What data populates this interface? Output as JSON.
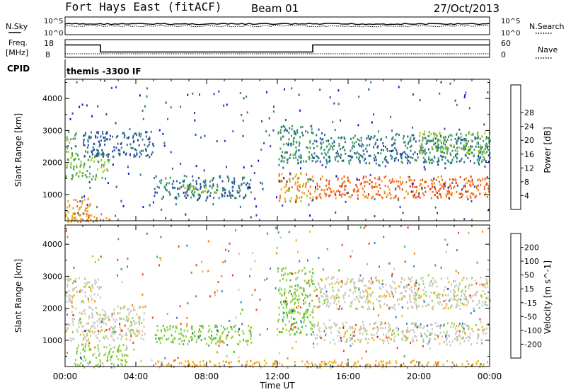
{
  "header": {
    "station": "Fort Hays East (fitACF)",
    "beam": "Beam 01",
    "date": "27/Oct/2013"
  },
  "panels": {
    "nsky": {
      "left_label": "N.Sky",
      "right_label": "N.Search",
      "left_ticks": [
        "10^5",
        "10^0"
      ],
      "right_ticks": [
        "10^5",
        "10^0"
      ]
    },
    "freq": {
      "left_label_1": "Freq.",
      "left_label_2": "[MHz]",
      "right_label": "Nave",
      "left_ticks": [
        "18",
        "8"
      ],
      "right_ticks": [
        "60",
        "0"
      ],
      "steps": [
        {
          "from": 0.0,
          "to": 2.0,
          "mhz": 15.0
        },
        {
          "from": 2.0,
          "to": 14.0,
          "mhz": 11.0
        },
        {
          "from": 14.0,
          "to": 24.0,
          "mhz": 15.0
        }
      ]
    },
    "cpid": {
      "label": "CPID",
      "program": "themis -3300 IF"
    }
  },
  "chart_data": [
    {
      "type": "heatmap",
      "name": "power",
      "ylabel": "Slant Range [km]",
      "xlabel": "Time UT",
      "x_ticks": [
        "00:00",
        "04:00",
        "08:00",
        "12:00",
        "16:00",
        "20:00",
        "00:00"
      ],
      "xlim_hours": [
        0,
        24
      ],
      "ylim_km": [
        180,
        4600
      ],
      "y_ticks": [
        "1000",
        "2000",
        "3000",
        "4000"
      ],
      "y_tick_values": [
        1000,
        2000,
        3000,
        4000
      ],
      "colorbar": {
        "label": "Power [dB]",
        "tick_labels": [
          "4",
          "8",
          "12",
          "16",
          "20",
          "24",
          "28"
        ],
        "colors": [
          "#0a14dc",
          "#2846a8",
          "#2d7a7a",
          "#3fa05a",
          "#a0c81e",
          "#f0a014",
          "#f06a1e",
          "#e63214",
          "#dc0a0a"
        ]
      },
      "regions": [
        {
          "t0": 0.0,
          "t1": 1.5,
          "r0": 180,
          "r1": 900,
          "value": 22
        },
        {
          "t0": 0.3,
          "t1": 2.6,
          "r0": 180,
          "r1": 450,
          "value": 24
        },
        {
          "t0": 0.0,
          "t1": 2.5,
          "r0": 1500,
          "r1": 2300,
          "value": 16
        },
        {
          "t0": 0.0,
          "t1": 0.6,
          "r0": 2300,
          "r1": 3000,
          "value": 14
        },
        {
          "t0": 1.0,
          "t1": 5.0,
          "r0": 2200,
          "r1": 3000,
          "value": 8
        },
        {
          "t0": 5.0,
          "t1": 10.5,
          "r0": 900,
          "r1": 1600,
          "value": 10
        },
        {
          "t0": 6.5,
          "t1": 8.5,
          "r0": 1050,
          "r1": 1300,
          "value": 18
        },
        {
          "t0": 12.0,
          "t1": 14.0,
          "r0": 800,
          "r1": 1700,
          "value": 22
        },
        {
          "t0": 12.0,
          "t1": 14.0,
          "r0": 2000,
          "r1": 3200,
          "value": 12
        },
        {
          "t0": 14.0,
          "t1": 24.0,
          "r0": 900,
          "r1": 1600,
          "value": 26
        },
        {
          "t0": 14.0,
          "t1": 24.0,
          "r0": 2000,
          "r1": 2900,
          "value": 10
        },
        {
          "t0": 20.0,
          "t1": 24.0,
          "r0": 2300,
          "r1": 3000,
          "value": 16
        }
      ]
    },
    {
      "type": "heatmap",
      "name": "velocity",
      "ylabel": "Slant Range [km]",
      "xlabel": "Time UT",
      "x_ticks": [
        "00:00",
        "04:00",
        "08:00",
        "12:00",
        "16:00",
        "20:00",
        "00:00"
      ],
      "xlim_hours": [
        0,
        24
      ],
      "ylim_km": [
        180,
        4600
      ],
      "y_ticks": [
        "1000",
        "2000",
        "3000",
        "4000"
      ],
      "y_tick_values": [
        1000,
        2000,
        3000,
        4000
      ],
      "colorbar": {
        "label": "Velocity [m s^-1]",
        "tick_labels": [
          "200",
          "100",
          "50",
          "15",
          "-15",
          "-50",
          "-100",
          "-200"
        ],
        "colors": [
          "#1e3ca0",
          "#3c82c8",
          "#46b446",
          "#8cd23c",
          "#c8c8be",
          "#f0b41e",
          "#f08214",
          "#f04614",
          "#e60a0a"
        ]
      },
      "regions": [
        {
          "t0": 0.0,
          "t1": 2.0,
          "r0": 2200,
          "r1": 3000,
          "value": 0
        },
        {
          "t0": 0.0,
          "t1": 4.5,
          "r0": 1000,
          "r1": 2100,
          "value": 0
        },
        {
          "t0": 0.5,
          "t1": 3.5,
          "r0": 180,
          "r1": 900,
          "value": 30
        },
        {
          "t0": 5.0,
          "t1": 10.5,
          "r0": 900,
          "r1": 1500,
          "value": 40
        },
        {
          "t0": 12.0,
          "t1": 14.0,
          "r0": 1200,
          "r1": 3300,
          "value": 40
        },
        {
          "t0": 14.0,
          "t1": 24.0,
          "r0": 900,
          "r1": 1600,
          "value": 0
        },
        {
          "t0": 14.0,
          "t1": 24.0,
          "r0": 2000,
          "r1": 3000,
          "value": 0
        },
        {
          "t0": 5.0,
          "t1": 24.0,
          "r0": 180,
          "r1": 400,
          "value": -40
        }
      ]
    }
  ]
}
